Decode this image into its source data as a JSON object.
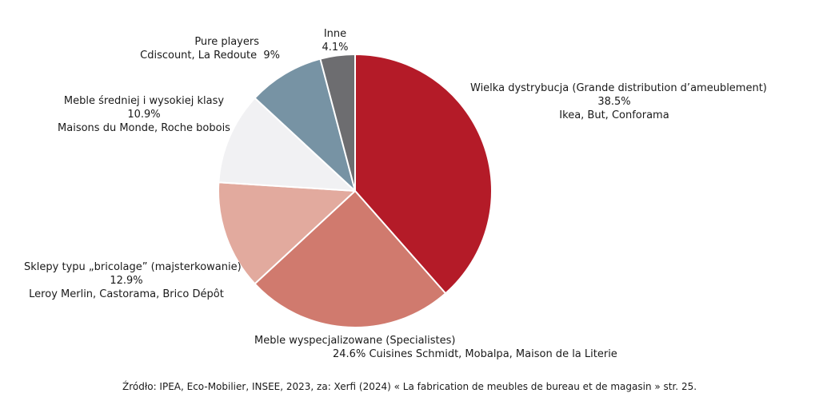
{
  "chart_data": {
    "type": "pie",
    "slices": [
      {
        "label": "Wielka dystrybucja (Grande distribution d’ameublement)",
        "value": 38.5,
        "value_label": "38.5%",
        "examples": "Ikea, But, Conforama",
        "color": "#b41b28"
      },
      {
        "label": "Meble wyspecjalizowane (Specialistes)",
        "value": 24.6,
        "value_label": "24.6%",
        "examples": "Cuisines Schmidt, Mobalpa, Maison de la Literie",
        "color": "#d07a6e"
      },
      {
        "label": "Sklepy typu „bricolage” (majsterkowanie)",
        "value": 12.9,
        "value_label": "12.9%",
        "examples": "Leroy Merlin, Castorama, Brico Dépôt",
        "color": "#e2aa9e"
      },
      {
        "label": "Meble średniej i wysokiej klasy",
        "value": 10.9,
        "value_label": "10.9%",
        "examples": "Maisons du Monde, Roche bobois",
        "color": "#f1f1f3"
      },
      {
        "label": "Pure players",
        "value": 9,
        "value_label": "9%",
        "examples": "Cdiscount, La Redoute",
        "color": "#7793a4"
      },
      {
        "label": "Inne",
        "value": 4.1,
        "value_label": "4.1%",
        "examples": "",
        "color": "#6d6d70"
      }
    ],
    "start": "12 o'clock",
    "direction": "clockwise"
  },
  "source": "Źródło: IPEA, Eco-Mobilier, INSEE, 2023, za: Xerfi (2024) « La fabrication de meubles de bureau et de magasin » str. 25."
}
